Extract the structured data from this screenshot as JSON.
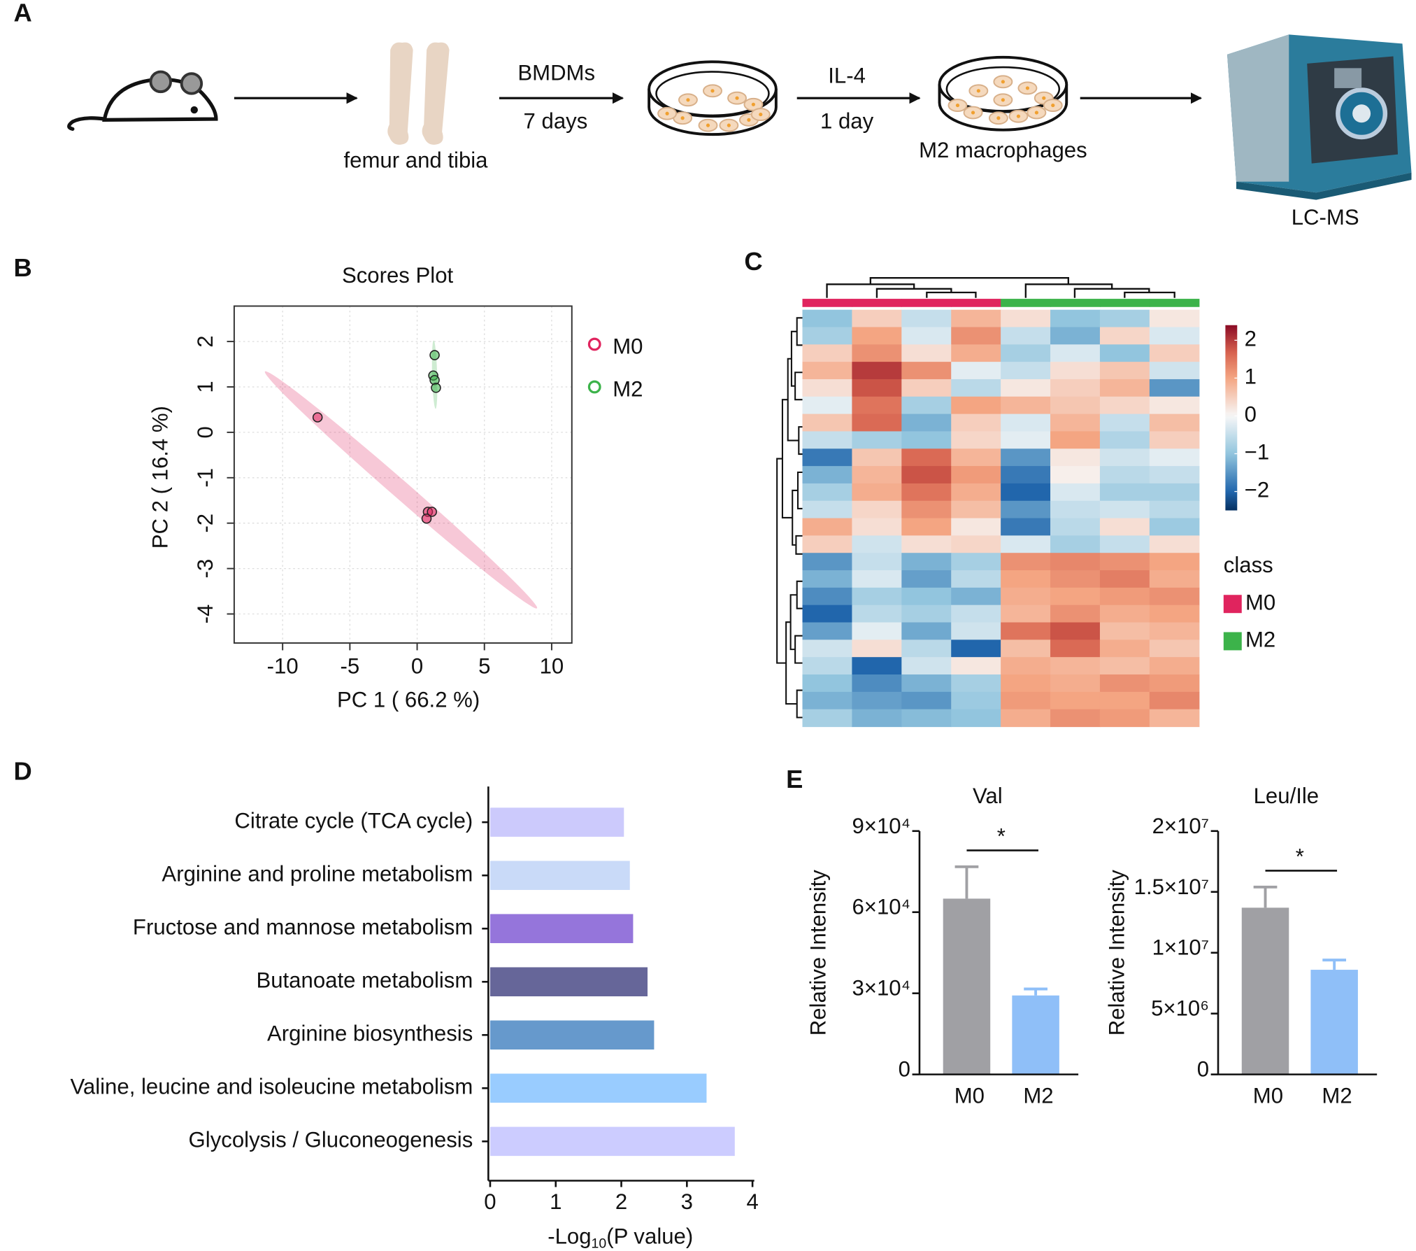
{
  "panel_labels": [
    "A",
    "B",
    "C",
    "D",
    "E"
  ],
  "workflow": {
    "bone_label": "femur and tibia",
    "step1_top": "BMDMs",
    "step1_bottom": "7 days",
    "step2_top": "IL-4",
    "step2_bottom": "1 day",
    "dish2_label": "M2 macrophages",
    "instrument_label": "LC-MS"
  },
  "chart_data": [
    {
      "type": "scatter",
      "title": "Scores Plot",
      "xlabel": "PC 1 ( 66.2 %)",
      "ylabel": "PC 2 ( 16.4 %)",
      "xlim": [
        -13.6,
        11.5
      ],
      "ylim": [
        -4.64,
        2.78
      ],
      "xticks": [
        -10,
        -5,
        0,
        5,
        10
      ],
      "yticks": [
        2,
        1,
        0,
        -1,
        -2,
        -3,
        -4
      ],
      "grid": true,
      "legend": "right",
      "series": [
        {
          "name": "M0",
          "color": "#e0245e",
          "x": [
            -7.4,
            0.8,
            1.1,
            0.7
          ],
          "y": [
            0.33,
            -1.75,
            -1.75,
            -1.9
          ]
        },
        {
          "name": "M2",
          "color": "#3cb34a",
          "x": [
            1.3,
            1.2,
            1.3,
            1.4
          ],
          "y": [
            1.7,
            1.25,
            1.15,
            0.98
          ]
        }
      ]
    },
    {
      "type": "heatmap",
      "legend_title": "class",
      "zlim": [
        -2.5,
        2.4
      ],
      "colorbar_ticks": [
        2,
        1,
        0,
        {
          "value": -1,
          "label": "−1"
        },
        {
          "value": -2,
          "label": "−2"
        }
      ],
      "series": [
        {
          "name": "M0",
          "color": "#e0245e"
        },
        {
          "name": "M2",
          "color": "#3cb34a"
        }
      ],
      "column_classes": [
        "M0",
        "M0",
        "M0",
        "M0",
        "M2",
        "M2",
        "M2",
        "M2"
      ],
      "values": [
        [
          -1,
          0.5,
          -0.5,
          0.8,
          0.3,
          -1,
          -0.8,
          0.2
        ],
        [
          -0.8,
          1,
          -0.3,
          1.2,
          -0.5,
          -1.2,
          0.4,
          -0.3
        ],
        [
          0.5,
          1.2,
          0.3,
          0.9,
          -0.8,
          -0.3,
          -1,
          0.5
        ],
        [
          0.8,
          2,
          1.2,
          -0.2,
          -0.5,
          0.3,
          0.6,
          -0.4
        ],
        [
          0.3,
          1.8,
          0.5,
          -0.6,
          0.2,
          0.5,
          0.8,
          -1.5
        ],
        [
          -0.2,
          1.5,
          -0.8,
          1,
          0.8,
          0.6,
          0.4,
          0.2
        ],
        [
          0.6,
          1.6,
          -1.2,
          0.5,
          -0.3,
          0.8,
          -0.5,
          0.7
        ],
        [
          -0.5,
          -0.8,
          -1,
          0.4,
          -0.2,
          1,
          -0.7,
          0.5
        ],
        [
          -1.8,
          0.6,
          1.6,
          0.8,
          -1.5,
          0.2,
          -0.4,
          -0.2
        ],
        [
          -1.2,
          0.8,
          1.8,
          1.1,
          -1.8,
          0.1,
          -0.6,
          -0.5
        ],
        [
          -0.8,
          0.9,
          1.5,
          0.9,
          -2,
          -0.3,
          -0.8,
          -0.8
        ],
        [
          -0.5,
          0.4,
          1.2,
          0.7,
          -1.5,
          -0.5,
          -0.4,
          -0.6
        ],
        [
          0.9,
          0.3,
          1.0,
          0.2,
          -1.8,
          -0.6,
          0.3,
          -0.9
        ],
        [
          0.5,
          -0.4,
          0.3,
          0.4,
          -0.3,
          -0.8,
          -0.5,
          0.3
        ],
        [
          -1.5,
          -0.5,
          -1.2,
          -0.8,
          1.2,
          1.3,
          1.2,
          1.0
        ],
        [
          -1.2,
          -0.3,
          -1.4,
          -0.6,
          1.0,
          1.2,
          1.4,
          0.9
        ],
        [
          -1.6,
          -0.8,
          -1.0,
          -1.2,
          0.9,
          1.0,
          1.1,
          1.2
        ],
        [
          -2,
          -0.6,
          -0.8,
          -0.5,
          0.8,
          1.2,
          0.9,
          1.0
        ],
        [
          -1.4,
          -0.2,
          -1.3,
          -0.4,
          1.5,
          1.8,
          0.7,
          0.8
        ],
        [
          -0.4,
          0.3,
          -0.6,
          -2.0,
          0.7,
          1.6,
          0.9,
          0.6
        ],
        [
          -0.6,
          -2.0,
          -0.4,
          0.2,
          0.9,
          0.8,
          0.7,
          0.9
        ],
        [
          -1.0,
          -1.6,
          -1.2,
          -0.8,
          1.0,
          0.9,
          1.2,
          1.1
        ],
        [
          -1.2,
          -1.4,
          -1.5,
          -0.9,
          1.1,
          1.0,
          1.0,
          1.3
        ],
        [
          -0.8,
          -1.2,
          -1.1,
          -1.0,
          0.9,
          1.2,
          1.1,
          0.8
        ]
      ]
    },
    {
      "type": "bar",
      "orientation": "horizontal",
      "categories": [
        "Citrate cycle (TCA cycle)",
        "Arginine and proline metabolism",
        "Fructose and mannose metabolism",
        "Butanoate metabolism",
        "Arginine biosynthesis",
        "Valine, leucine and isoleucine metabolism",
        "Glycolysis / Gluconeogenesis"
      ],
      "values": [
        2.04,
        2.13,
        2.18,
        2.4,
        2.5,
        3.3,
        3.73
      ],
      "colors": [
        "#cccafc",
        "#c9daf8",
        "#9575db",
        "#666699",
        "#6699cc",
        "#99ccff",
        "#ccccff"
      ],
      "xlim": [
        0,
        4
      ],
      "xticks": [
        0,
        1,
        2,
        3,
        4
      ],
      "xlabel": {
        "main": "-Log",
        "subscript": "10",
        "rest": "(P value)"
      }
    },
    {
      "type": "bar",
      "orientation": "vertical",
      "title": "Val",
      "ylabel": "Relative Intensity",
      "categories": [
        "M0",
        "M2"
      ],
      "values": [
        65000,
        29200
      ],
      "errors": [
        11800,
        2400
      ],
      "colors": [
        "#a0a0a4",
        "#8fbff8"
      ],
      "ylim": [
        0,
        90000
      ],
      "yticks": [
        0,
        {
          "value": 30000,
          "label": "3×10⁴"
        },
        {
          "value": 60000,
          "label": "6×10⁴"
        },
        {
          "value": 90000,
          "label": "9×10⁴"
        }
      ],
      "significance": "*"
    },
    {
      "type": "bar",
      "orientation": "vertical",
      "title": "Leu/Ile",
      "ylabel": "Relative Intensity",
      "categories": [
        "M0",
        "M2"
      ],
      "values": [
        13700000,
        8600000
      ],
      "errors": [
        1700000,
        800000
      ],
      "colors": [
        "#a0a0a4",
        "#8fbff8"
      ],
      "ylim": [
        0,
        20000000
      ],
      "yticks": [
        0,
        {
          "value": 5000000,
          "label": "5×10⁶"
        },
        {
          "value": 10000000,
          "label": "1×10⁷"
        },
        {
          "value": 15000000,
          "label": "1.5×10⁷"
        },
        {
          "value": 20000000,
          "label": "2×10⁷"
        }
      ],
      "significance": "*"
    }
  ]
}
